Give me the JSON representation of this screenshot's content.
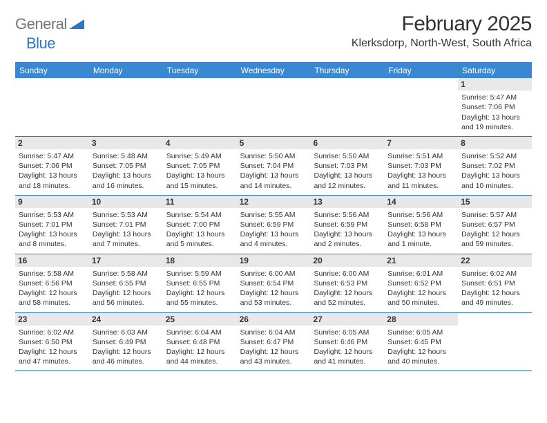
{
  "brand": {
    "word1": "General",
    "word2": "Blue"
  },
  "title": "February 2025",
  "location": "Klerksdorp, North-West, South Africa",
  "colors": {
    "accent": "#2e75c8",
    "header_bg": "#3a87d2",
    "dnum_bg": "#e8e8e8",
    "text": "#333333",
    "logo_gray": "#757575",
    "bg": "#ffffff"
  },
  "dayNames": [
    "Sunday",
    "Monday",
    "Tuesday",
    "Wednesday",
    "Thursday",
    "Friday",
    "Saturday"
  ],
  "weeks": [
    [
      null,
      null,
      null,
      null,
      null,
      null,
      {
        "n": "1",
        "sr": "Sunrise: 5:47 AM",
        "ss": "Sunset: 7:06 PM",
        "d1": "Daylight: 13 hours",
        "d2": "and 19 minutes."
      }
    ],
    [
      {
        "n": "2",
        "sr": "Sunrise: 5:47 AM",
        "ss": "Sunset: 7:06 PM",
        "d1": "Daylight: 13 hours",
        "d2": "and 18 minutes."
      },
      {
        "n": "3",
        "sr": "Sunrise: 5:48 AM",
        "ss": "Sunset: 7:05 PM",
        "d1": "Daylight: 13 hours",
        "d2": "and 16 minutes."
      },
      {
        "n": "4",
        "sr": "Sunrise: 5:49 AM",
        "ss": "Sunset: 7:05 PM",
        "d1": "Daylight: 13 hours",
        "d2": "and 15 minutes."
      },
      {
        "n": "5",
        "sr": "Sunrise: 5:50 AM",
        "ss": "Sunset: 7:04 PM",
        "d1": "Daylight: 13 hours",
        "d2": "and 14 minutes."
      },
      {
        "n": "6",
        "sr": "Sunrise: 5:50 AM",
        "ss": "Sunset: 7:03 PM",
        "d1": "Daylight: 13 hours",
        "d2": "and 12 minutes."
      },
      {
        "n": "7",
        "sr": "Sunrise: 5:51 AM",
        "ss": "Sunset: 7:03 PM",
        "d1": "Daylight: 13 hours",
        "d2": "and 11 minutes."
      },
      {
        "n": "8",
        "sr": "Sunrise: 5:52 AM",
        "ss": "Sunset: 7:02 PM",
        "d1": "Daylight: 13 hours",
        "d2": "and 10 minutes."
      }
    ],
    [
      {
        "n": "9",
        "sr": "Sunrise: 5:53 AM",
        "ss": "Sunset: 7:01 PM",
        "d1": "Daylight: 13 hours",
        "d2": "and 8 minutes."
      },
      {
        "n": "10",
        "sr": "Sunrise: 5:53 AM",
        "ss": "Sunset: 7:01 PM",
        "d1": "Daylight: 13 hours",
        "d2": "and 7 minutes."
      },
      {
        "n": "11",
        "sr": "Sunrise: 5:54 AM",
        "ss": "Sunset: 7:00 PM",
        "d1": "Daylight: 13 hours",
        "d2": "and 5 minutes."
      },
      {
        "n": "12",
        "sr": "Sunrise: 5:55 AM",
        "ss": "Sunset: 6:59 PM",
        "d1": "Daylight: 13 hours",
        "d2": "and 4 minutes."
      },
      {
        "n": "13",
        "sr": "Sunrise: 5:56 AM",
        "ss": "Sunset: 6:59 PM",
        "d1": "Daylight: 13 hours",
        "d2": "and 2 minutes."
      },
      {
        "n": "14",
        "sr": "Sunrise: 5:56 AM",
        "ss": "Sunset: 6:58 PM",
        "d1": "Daylight: 13 hours",
        "d2": "and 1 minute."
      },
      {
        "n": "15",
        "sr": "Sunrise: 5:57 AM",
        "ss": "Sunset: 6:57 PM",
        "d1": "Daylight: 12 hours",
        "d2": "and 59 minutes."
      }
    ],
    [
      {
        "n": "16",
        "sr": "Sunrise: 5:58 AM",
        "ss": "Sunset: 6:56 PM",
        "d1": "Daylight: 12 hours",
        "d2": "and 58 minutes."
      },
      {
        "n": "17",
        "sr": "Sunrise: 5:58 AM",
        "ss": "Sunset: 6:55 PM",
        "d1": "Daylight: 12 hours",
        "d2": "and 56 minutes."
      },
      {
        "n": "18",
        "sr": "Sunrise: 5:59 AM",
        "ss": "Sunset: 6:55 PM",
        "d1": "Daylight: 12 hours",
        "d2": "and 55 minutes."
      },
      {
        "n": "19",
        "sr": "Sunrise: 6:00 AM",
        "ss": "Sunset: 6:54 PM",
        "d1": "Daylight: 12 hours",
        "d2": "and 53 minutes."
      },
      {
        "n": "20",
        "sr": "Sunrise: 6:00 AM",
        "ss": "Sunset: 6:53 PM",
        "d1": "Daylight: 12 hours",
        "d2": "and 52 minutes."
      },
      {
        "n": "21",
        "sr": "Sunrise: 6:01 AM",
        "ss": "Sunset: 6:52 PM",
        "d1": "Daylight: 12 hours",
        "d2": "and 50 minutes."
      },
      {
        "n": "22",
        "sr": "Sunrise: 6:02 AM",
        "ss": "Sunset: 6:51 PM",
        "d1": "Daylight: 12 hours",
        "d2": "and 49 minutes."
      }
    ],
    [
      {
        "n": "23",
        "sr": "Sunrise: 6:02 AM",
        "ss": "Sunset: 6:50 PM",
        "d1": "Daylight: 12 hours",
        "d2": "and 47 minutes."
      },
      {
        "n": "24",
        "sr": "Sunrise: 6:03 AM",
        "ss": "Sunset: 6:49 PM",
        "d1": "Daylight: 12 hours",
        "d2": "and 46 minutes."
      },
      {
        "n": "25",
        "sr": "Sunrise: 6:04 AM",
        "ss": "Sunset: 6:48 PM",
        "d1": "Daylight: 12 hours",
        "d2": "and 44 minutes."
      },
      {
        "n": "26",
        "sr": "Sunrise: 6:04 AM",
        "ss": "Sunset: 6:47 PM",
        "d1": "Daylight: 12 hours",
        "d2": "and 43 minutes."
      },
      {
        "n": "27",
        "sr": "Sunrise: 6:05 AM",
        "ss": "Sunset: 6:46 PM",
        "d1": "Daylight: 12 hours",
        "d2": "and 41 minutes."
      },
      {
        "n": "28",
        "sr": "Sunrise: 6:05 AM",
        "ss": "Sunset: 6:45 PM",
        "d1": "Daylight: 12 hours",
        "d2": "and 40 minutes."
      },
      null
    ]
  ]
}
